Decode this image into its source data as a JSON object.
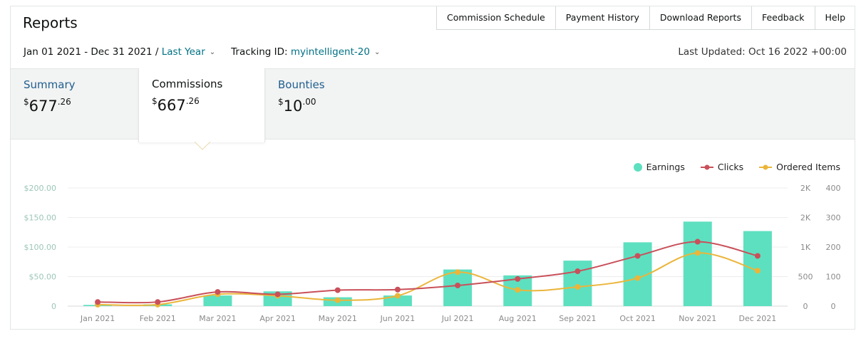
{
  "header": {
    "title": "Reports"
  },
  "top_tabs": [
    "Commission Schedule",
    "Payment History",
    "Download Reports",
    "Feedback",
    "Help"
  ],
  "filters": {
    "date_range": "Jan 01 2021 - Dec 31 2021 /",
    "period": "Last Year",
    "tracking_label": "Tracking ID:",
    "tracking_id": "myintelligent-20"
  },
  "last_updated": "Last Updated: Oct 16 2022 +00:00",
  "cards": [
    {
      "title": "Summary",
      "currency": "$",
      "whole": "677",
      "cents": ".26"
    },
    {
      "title": "Commissions",
      "currency": "$",
      "whole": "667",
      "cents": ".26"
    },
    {
      "title": "Bounties",
      "currency": "$",
      "whole": "10",
      "cents": ".00"
    }
  ],
  "legend": {
    "earnings": "Earnings",
    "clicks": "Clicks",
    "ordered": "Ordered Items"
  },
  "colors": {
    "earnings": "#5de0c0",
    "clicks": "#c9505a",
    "ordered": "#ebb53a",
    "link": "#007185"
  },
  "chart_data": {
    "type": "bar+line",
    "categories": [
      "Jan 2021",
      "Feb 2021",
      "Mar 2021",
      "Apr 2021",
      "May 2021",
      "Jun 2021",
      "Jul 2021",
      "Aug 2021",
      "Sep 2021",
      "Oct 2021",
      "Nov 2021",
      "Dec 2021"
    ],
    "series": [
      {
        "name": "Earnings",
        "axis": "left",
        "values": [
          2,
          3,
          18,
          25,
          15,
          18,
          62,
          52,
          77,
          108,
          143,
          127
        ]
      },
      {
        "name": "Clicks",
        "axis": "right1",
        "values": [
          70,
          70,
          240,
          200,
          270,
          280,
          350,
          460,
          590,
          850,
          1090,
          850
        ]
      },
      {
        "name": "Ordered Items",
        "axis": "right2",
        "values": [
          5,
          5,
          40,
          35,
          20,
          35,
          115,
          55,
          65,
          95,
          180,
          120
        ]
      }
    ],
    "left_ticks": [
      "0",
      "$50.00",
      "$100.00",
      "$150.00",
      "$200.00"
    ],
    "left_max": 200,
    "right1_ticks": [
      "0",
      "500",
      "1K",
      "2K",
      "2K"
    ],
    "right1_max": 2000,
    "right2_ticks": [
      "0",
      "100",
      "200",
      "300",
      "400"
    ],
    "right2_max": 400
  }
}
